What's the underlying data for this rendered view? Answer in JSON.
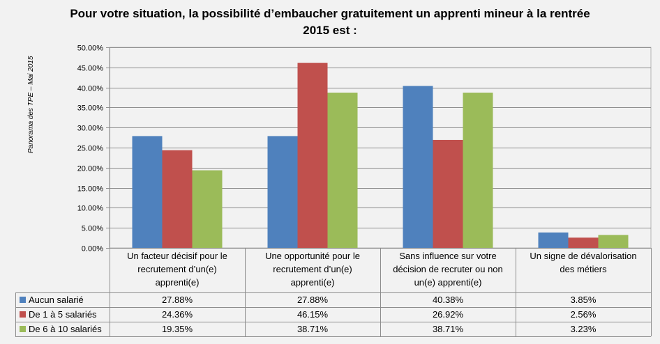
{
  "chart_data": {
    "type": "bar",
    "title": "Pour votre situation, la possibilité d’embaucher gratuitement un apprenti mineur à la rentrée 2015 est :",
    "title_lines": [
      "Pour votre situation, la possibilité d’embaucher gratuitement un apprenti mineur à la rentrée",
      "2015 est :"
    ],
    "side_note": "Panorama des TPE – Mai 2015",
    "categories": [
      [
        "Un facteur décisif pour le",
        "recrutement  d’un(e)",
        "apprenti(e)"
      ],
      [
        "Une opportunité  pour le",
        "recrutement  d’un(e)",
        "apprenti(e)"
      ],
      [
        "Sans influence sur votre",
        "décision de recruter ou non",
        "un(e) apprenti(e)"
      ],
      [
        "Un signe de dévalorisation",
        "des métiers"
      ]
    ],
    "series": [
      {
        "name": "Aucun salarié",
        "color": "#4f81bd",
        "values": [
          27.88,
          27.88,
          40.38,
          3.85
        ],
        "labels": [
          "27.88%",
          "27.88%",
          "40.38%",
          "3.85%"
        ]
      },
      {
        "name": "De 1 à 5 salariés",
        "color": "#c0504d",
        "values": [
          24.36,
          46.15,
          26.92,
          2.56
        ],
        "labels": [
          "24.36%",
          "46.15%",
          "26.92%",
          "2.56%"
        ]
      },
      {
        "name": "De 6 à 10 salariés",
        "color": "#9bbb59",
        "values": [
          19.35,
          38.71,
          38.71,
          3.23
        ],
        "labels": [
          "19.35%",
          "38.71%",
          "38.71%",
          "3.23%"
        ]
      }
    ],
    "ylim": [
      0,
      50
    ],
    "yticks": [
      "0.00%",
      "5.00%",
      "10.00%",
      "15.00%",
      "20.00%",
      "25.00%",
      "30.00%",
      "35.00%",
      "40.00%",
      "45.00%",
      "50.00%"
    ],
    "grid": true,
    "legend": "data-table"
  }
}
